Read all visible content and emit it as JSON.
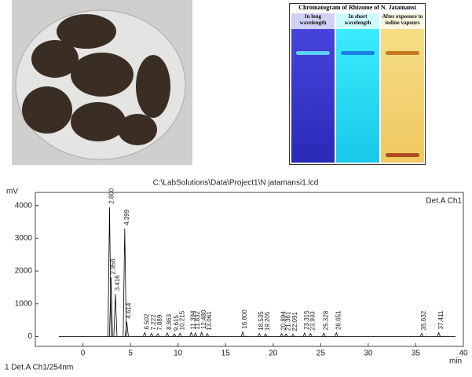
{
  "tlc": {
    "title": "Chromatogram of Rhizome of N. Jatamansi",
    "panels": [
      "In long wavelength",
      "In short wavelength",
      "After exposure to iodine vapours"
    ]
  },
  "chart_data": {
    "type": "line",
    "title": "C:\\LabSolutions\\Data\\Project1\\N jatamansi1.lcd",
    "y_label": "mV",
    "x_label": "min",
    "detector": "Det.A Ch1",
    "footer": "1 Det.A Ch1/254nm",
    "x": [
      2.8,
      2.956,
      3.416,
      4.399,
      4.614,
      6.502,
      7.222,
      7.889,
      8.863,
      9.615,
      10.215,
      11.394,
      11.832,
      12.48,
      13.061,
      16.8,
      18.535,
      19.205,
      20.894,
      21.361,
      22.091,
      23.315,
      23.933,
      25.328,
      26.651,
      35.632,
      37.411
    ],
    "x_labels": [
      "2.800",
      "2.956",
      "3.416",
      "4.399",
      "4.614",
      "6.502",
      "7.222",
      "7.889",
      "8.863",
      "9.615",
      "10.215",
      "11.394",
      "11.832",
      "12.480",
      "13.061",
      "16.800",
      "18.535",
      "19.205",
      "20.894",
      "21.361",
      "22.091",
      "23.315",
      "23.933",
      "25.328",
      "26.651",
      "35.632",
      "37.411"
    ],
    "values": [
      3950,
      1800,
      1300,
      3300,
      450,
      120,
      100,
      90,
      110,
      80,
      100,
      120,
      110,
      130,
      90,
      140,
      90,
      80,
      90,
      80,
      70,
      110,
      90,
      100,
      110,
      100,
      120
    ],
    "color": "#000000",
    "xlim": [
      -5,
      40
    ],
    "ylim": [
      -300,
      4400
    ],
    "xticks": [
      0,
      5,
      10,
      15,
      20,
      25,
      30,
      35,
      40
    ],
    "yticks": [
      0,
      1000,
      2000,
      3000,
      4000
    ]
  }
}
